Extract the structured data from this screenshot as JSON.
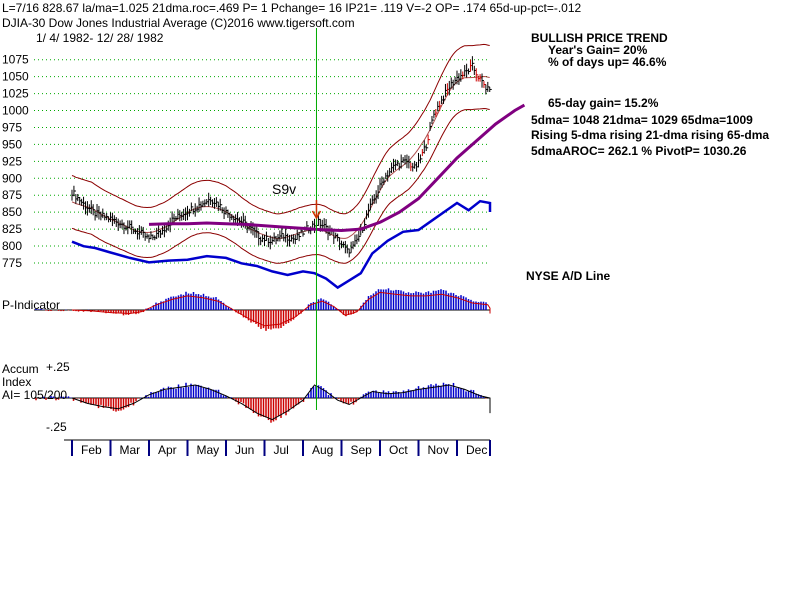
{
  "header": {
    "stats_line": "L=7/16  828.67  la/ma=1.025 21dma.roc=.469 P=  1 Pchange=  16 IP21= .119 V=-2 OP= .174 65d-up-pct=-.012",
    "title_line": "DJIA-30  Dow Jones Industrial Average   (C)2016 www.tigersoft.com",
    "date_range": "1/ 4/ 1982-  12/ 28/ 1982"
  },
  "summary": {
    "trend_title": "BULLISH PRICE TREND",
    "years_gain": "Year's Gain= 20%",
    "pct_days_up": "% of days up= 46.6%",
    "gain_65day": "65-day gain= 15.2%",
    "dma_line": "5dma= 1048 21dma= 1029 65dma=1009",
    "rising_line": "Rising 5-dma  rising 21-dma  rising 65-dma",
    "aroc_line": "5dmaAROC= 262.1  %  PivotP= 1030.26"
  },
  "labels": {
    "signal": "S9v",
    "nyse_ad": "NYSE A/D Line",
    "p_indicator": "P-Indicator",
    "accum_1": "Accum",
    "accum_2": "Index",
    "accum_3": "AI= 105/200",
    "accum_top": "+.25",
    "accum_bottom": "-.25"
  },
  "colors": {
    "price_bars": "#000000",
    "bands": "#8b0000",
    "ma65": "#800080",
    "ad_line": "#0000cc",
    "positive": "#0000cc",
    "negative": "#cc0000",
    "grid": "#00aa00",
    "signal_line": "#00aa00",
    "signal_arrow": "#cc3300"
  },
  "chart_data": {
    "type": "line",
    "title": "DJIA-30 Dow Jones Industrial Average 1982",
    "x_axis": {
      "months": [
        "Feb",
        "Mar",
        "Apr",
        "May",
        "Jun",
        "Jul",
        "Aug",
        "Sep",
        "Oct",
        "Nov",
        "Dec"
      ]
    },
    "y_axis": {
      "ticks": [
        775,
        800,
        825,
        850,
        875,
        900,
        925,
        950,
        975,
        1000,
        1025,
        1050,
        1075
      ],
      "ylim": [
        772,
        1082
      ]
    },
    "signal": {
      "label": "S9v",
      "date": "7/16",
      "month_position": 6.35
    },
    "price_series": {
      "name": "DJIA close (approx.)",
      "t": [
        0.0,
        0.3,
        0.6,
        1.0,
        1.4,
        1.8,
        2.0,
        2.3,
        2.6,
        3.0,
        3.3,
        3.6,
        3.8,
        4.0,
        4.3,
        4.6,
        4.9,
        5.2,
        5.5,
        5.8,
        6.1,
        6.4,
        6.7,
        7.0,
        7.15,
        7.3,
        7.5,
        7.7,
        7.9,
        8.1,
        8.4,
        8.7,
        8.9,
        9.0,
        9.2,
        9.4,
        9.6,
        9.8,
        10.0,
        10.2,
        10.4,
        10.6,
        10.8,
        11.0,
        11.2,
        11.4,
        11.6,
        11.75
      ],
      "values": [
        880,
        862,
        848,
        840,
        830,
        818,
        810,
        820,
        838,
        852,
        860,
        870,
        862,
        850,
        840,
        828,
        812,
        808,
        815,
        810,
        825,
        835,
        822,
        803,
        792,
        798,
        820,
        852,
        875,
        900,
        920,
        925,
        915,
        922,
        950,
        995,
        1015,
        1035,
        1048,
        1055,
        1065,
        1045,
        1030,
        1050,
        1058,
        1040,
        1048,
        1060
      ]
    },
    "ma65_series": {
      "name": "65-dma",
      "t": [
        2.0,
        2.5,
        3.0,
        3.5,
        4.0,
        4.5,
        5.0,
        5.5,
        6.0,
        6.5,
        7.0,
        7.5,
        8.0,
        8.5,
        9.0,
        9.5,
        10.0,
        10.5,
        11.0,
        11.5,
        11.75
      ],
      "values": [
        832,
        833,
        833,
        834,
        833,
        832,
        830,
        828,
        826,
        824,
        823,
        825,
        835,
        850,
        870,
        900,
        930,
        955,
        980,
        1000,
        1008
      ]
    },
    "ad_line": {
      "name": "NYSE A/D Line",
      "t": [
        0.0,
        0.3,
        0.6,
        1.0,
        1.5,
        2.0,
        2.5,
        3.0,
        3.5,
        4.0,
        4.4,
        4.8,
        5.2,
        5.6,
        6.0,
        6.3,
        6.6,
        6.9,
        7.2,
        7.5,
        7.8,
        8.2,
        8.6,
        9.0,
        9.4,
        9.8,
        10.0,
        10.3,
        10.6,
        10.9,
        11.2,
        11.5,
        11.75
      ],
      "values": [
        0.35,
        0.1,
        0.0,
        -0.25,
        -0.55,
        -0.8,
        -0.7,
        -0.65,
        -0.45,
        -0.55,
        -0.85,
        -1.0,
        -1.3,
        -1.5,
        -1.3,
        -1.4,
        -1.7,
        -2.2,
        -1.8,
        -1.4,
        -0.3,
        0.4,
        0.9,
        1.0,
        1.6,
        2.2,
        2.5,
        2.1,
        2.6,
        2.5,
        2.3,
        2.0,
        2.3
      ]
    },
    "p_indicator": {
      "name": "P-Indicator",
      "t": [
        0.0,
        0.5,
        1.0,
        1.5,
        1.8,
        2.2,
        2.6,
        3.0,
        3.4,
        3.8,
        4.2,
        4.6,
        5.0,
        5.4,
        5.8,
        6.2,
        6.5,
        6.8,
        7.1,
        7.4,
        7.7,
        8.0,
        8.4,
        8.8,
        9.2,
        9.6,
        10.0,
        10.4,
        10.8,
        11.2,
        11.5,
        11.75
      ],
      "values": [
        0.0,
        -0.05,
        -0.15,
        -0.2,
        -0.1,
        0.3,
        0.6,
        0.8,
        0.7,
        0.5,
        0.0,
        -0.5,
        -0.9,
        -0.8,
        -0.4,
        0.3,
        0.5,
        0.2,
        -0.3,
        -0.1,
        0.6,
        1.0,
        0.9,
        0.8,
        0.8,
        0.9,
        0.7,
        0.4,
        0.3,
        0.1,
        -0.2,
        0.1
      ]
    },
    "accum_index": {
      "name": "Accum Index",
      "ylim": [
        -0.25,
        0.25
      ],
      "t": [
        0.0,
        0.4,
        0.8,
        1.2,
        1.6,
        2.0,
        2.4,
        2.8,
        3.2,
        3.6,
        4.0,
        4.4,
        4.8,
        5.2,
        5.6,
        6.0,
        6.3,
        6.6,
        6.9,
        7.2,
        7.5,
        7.8,
        8.2,
        8.6,
        9.0,
        9.4,
        9.8,
        10.2,
        10.6,
        11.0,
        11.3,
        11.6,
        11.75
      ],
      "values": [
        0.0,
        -0.05,
        -0.08,
        -0.1,
        -0.05,
        0.03,
        0.08,
        0.1,
        0.12,
        0.08,
        0.02,
        -0.05,
        -0.14,
        -0.2,
        -0.12,
        -0.02,
        0.12,
        0.06,
        -0.02,
        -0.06,
        0.0,
        0.06,
        0.04,
        0.05,
        0.08,
        0.1,
        0.12,
        0.08,
        0.02,
        0.0,
        -0.05,
        -0.14,
        -0.08
      ]
    }
  }
}
